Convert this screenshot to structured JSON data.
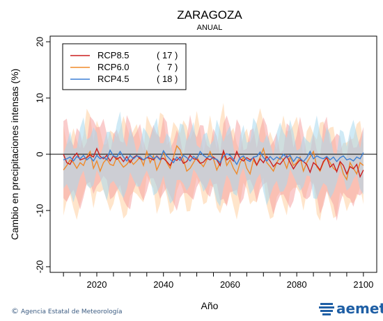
{
  "footer": {
    "copyright_symbol": "©",
    "agency": "Agencia Estatal de Meteorología"
  },
  "logo": {
    "text": "aemet"
  },
  "chart_data": {
    "type": "line",
    "title": "ZARAGOZA",
    "subtitle": "ANUAL",
    "xlabel": "Año",
    "ylabel": "Cambio en precipitaciones intensas (%)",
    "xlim": [
      2006,
      2104
    ],
    "ylim": [
      -21,
      21
    ],
    "xticks": [
      2020,
      2040,
      2060,
      2080,
      2100
    ],
    "yticks": [
      -20,
      -10,
      0,
      10,
      20
    ],
    "grid": false,
    "zero_line": 0,
    "legend_position": "top-left",
    "x": [
      2010,
      2011,
      2012,
      2013,
      2014,
      2015,
      2016,
      2017,
      2018,
      2019,
      2020,
      2021,
      2022,
      2023,
      2024,
      2025,
      2026,
      2027,
      2028,
      2029,
      2030,
      2031,
      2032,
      2033,
      2034,
      2035,
      2036,
      2037,
      2038,
      2039,
      2040,
      2041,
      2042,
      2043,
      2044,
      2045,
      2046,
      2047,
      2048,
      2049,
      2050,
      2051,
      2052,
      2053,
      2054,
      2055,
      2056,
      2057,
      2058,
      2059,
      2060,
      2061,
      2062,
      2063,
      2064,
      2065,
      2066,
      2067,
      2068,
      2069,
      2070,
      2071,
      2072,
      2073,
      2074,
      2075,
      2076,
      2077,
      2078,
      2079,
      2080,
      2081,
      2082,
      2083,
      2084,
      2085,
      2086,
      2087,
      2088,
      2089,
      2090,
      2091,
      2092,
      2093,
      2094,
      2095,
      2096,
      2097,
      2098,
      2099,
      2100
    ],
    "series": [
      {
        "name": "RCP8.5",
        "count": "( 17 )",
        "color": "#cc1f1f",
        "band_color": "#f5a3a3",
        "values": [
          0,
          -1.5,
          -1.8,
          -0.5,
          0.2,
          -1.0,
          -0.8,
          -0.6,
          -0.1,
          -0.5,
          1.0,
          -0.4,
          -0.8,
          -0.2,
          -1.2,
          -0.3,
          -0.9,
          -0.5,
          -1.3,
          -0.4,
          -1.5,
          -0.6,
          -0.2,
          -0.8,
          -1.0,
          -0.6,
          -0.7,
          -1.0,
          -0.3,
          -0.9,
          -0.7,
          -1.3,
          -2.0,
          -0.8,
          -1.1,
          -0.5,
          -1.6,
          -1.3,
          -0.2,
          -0.8,
          -0.9,
          -1.6,
          -1.4,
          -0.7,
          -1.0,
          -0.5,
          -1.0,
          -2.0,
          0.6,
          -1.0,
          -0.6,
          -1.2,
          0.5,
          -0.8,
          -1.2,
          -0.6,
          -1.0,
          -0.6,
          -1.9,
          -0.8,
          -1.5,
          -0.4,
          -1.2,
          -2.2,
          -1.5,
          -1.8,
          -1.0,
          -0.3,
          -1.5,
          -2.6,
          -1.7,
          -1.0,
          -1.3,
          -1.8,
          -3.2,
          -1.5,
          -2.0,
          -2.8,
          -1.3,
          -0.6,
          -2.3,
          -1.7,
          -3.1,
          -1.3,
          -2.0,
          -3.5,
          -2.2,
          -2.6,
          -1.8,
          -4.0,
          -2.8
        ]
      },
      {
        "name": "RCP6.0",
        "count": "(   7 )",
        "color": "#f08a2a",
        "band_color": "#ffd0a0",
        "values": [
          -2.8,
          -2.0,
          -1.0,
          -1.5,
          -2.5,
          -1.5,
          -2.0,
          -0.5,
          0.5,
          -2.5,
          -1.2,
          -3.0,
          -1.5,
          -0.8,
          -1.8,
          -2.0,
          -0.5,
          -1.5,
          -2.3,
          -1.8,
          -1.0,
          -1.8,
          -1.2,
          -0.5,
          -2.0,
          0.5,
          -1.5,
          -0.3,
          -2.8,
          -1.5,
          0.5,
          -1.5,
          -2.5,
          -0.5,
          1.5,
          0.8,
          -1.0,
          -3.0,
          -2.5,
          -1.5,
          -0.5,
          -1.5,
          -2.2,
          -1.0,
          0.5,
          -0.8,
          -2.8,
          -1.5,
          0.5,
          -2.0,
          -1.0,
          -2.5,
          -3.5,
          -1.5,
          -0.5,
          -2.5,
          -3.5,
          -1.0,
          -2.0,
          -0.5,
          1.0,
          -1.5,
          -2.2,
          -3.0,
          -1.5,
          -0.5,
          -1.0,
          -2.5,
          -0.5,
          -2.0,
          -1.5,
          -0.5,
          -3.0,
          -1.5,
          -0.5,
          0.5,
          -2.2,
          -3.0,
          -1.5,
          -0.5,
          -1.5,
          -2.5,
          -3.0,
          -1.5,
          -3.5,
          -4.5,
          -1.5,
          -2.5,
          -3.5,
          -1.5,
          -2.0
        ]
      },
      {
        "name": "RCP4.5",
        "count": "( 18 )",
        "color": "#3a7fd5",
        "band_color": "#a8d8ee",
        "values": [
          -1.0,
          -0.8,
          -0.5,
          -1.2,
          -0.4,
          -0.8,
          -0.2,
          -1.0,
          -0.5,
          -1.2,
          -0.2,
          -0.8,
          -0.5,
          -1.0,
          0.7,
          -0.3,
          -0.5,
          0.5,
          -0.5,
          -1.2,
          -0.2,
          -0.8,
          -0.3,
          -0.5,
          -1.0,
          -0.6,
          -0.2,
          -0.8,
          -0.4,
          -1.0,
          0.6,
          -0.3,
          -0.9,
          -1.5,
          -0.5,
          -1.1,
          -0.2,
          -0.6,
          -1.2,
          -0.4,
          -0.8,
          0.5,
          -0.2,
          -0.6,
          -0.3,
          -0.8,
          -0.9,
          -1.5,
          -0.4,
          0.1,
          -0.2,
          -0.9,
          -1.8,
          -0.6,
          -0.3,
          -1.0,
          -1.3,
          -0.5,
          -0.4,
          0.4,
          -0.6,
          -1.2,
          -0.4,
          -1.0,
          -0.5,
          -0.9,
          0.0,
          -0.6,
          -0.2,
          -1.3,
          -0.5,
          -0.7,
          -1.3,
          -0.6,
          0.5,
          -0.8,
          -0.3,
          -0.6,
          -0.8,
          -0.4,
          -1.0,
          -0.5,
          -1.3,
          -0.6,
          -0.3,
          -1.0,
          -0.8,
          -1.2,
          -0.5,
          -0.8,
          0.3
        ]
      }
    ]
  }
}
